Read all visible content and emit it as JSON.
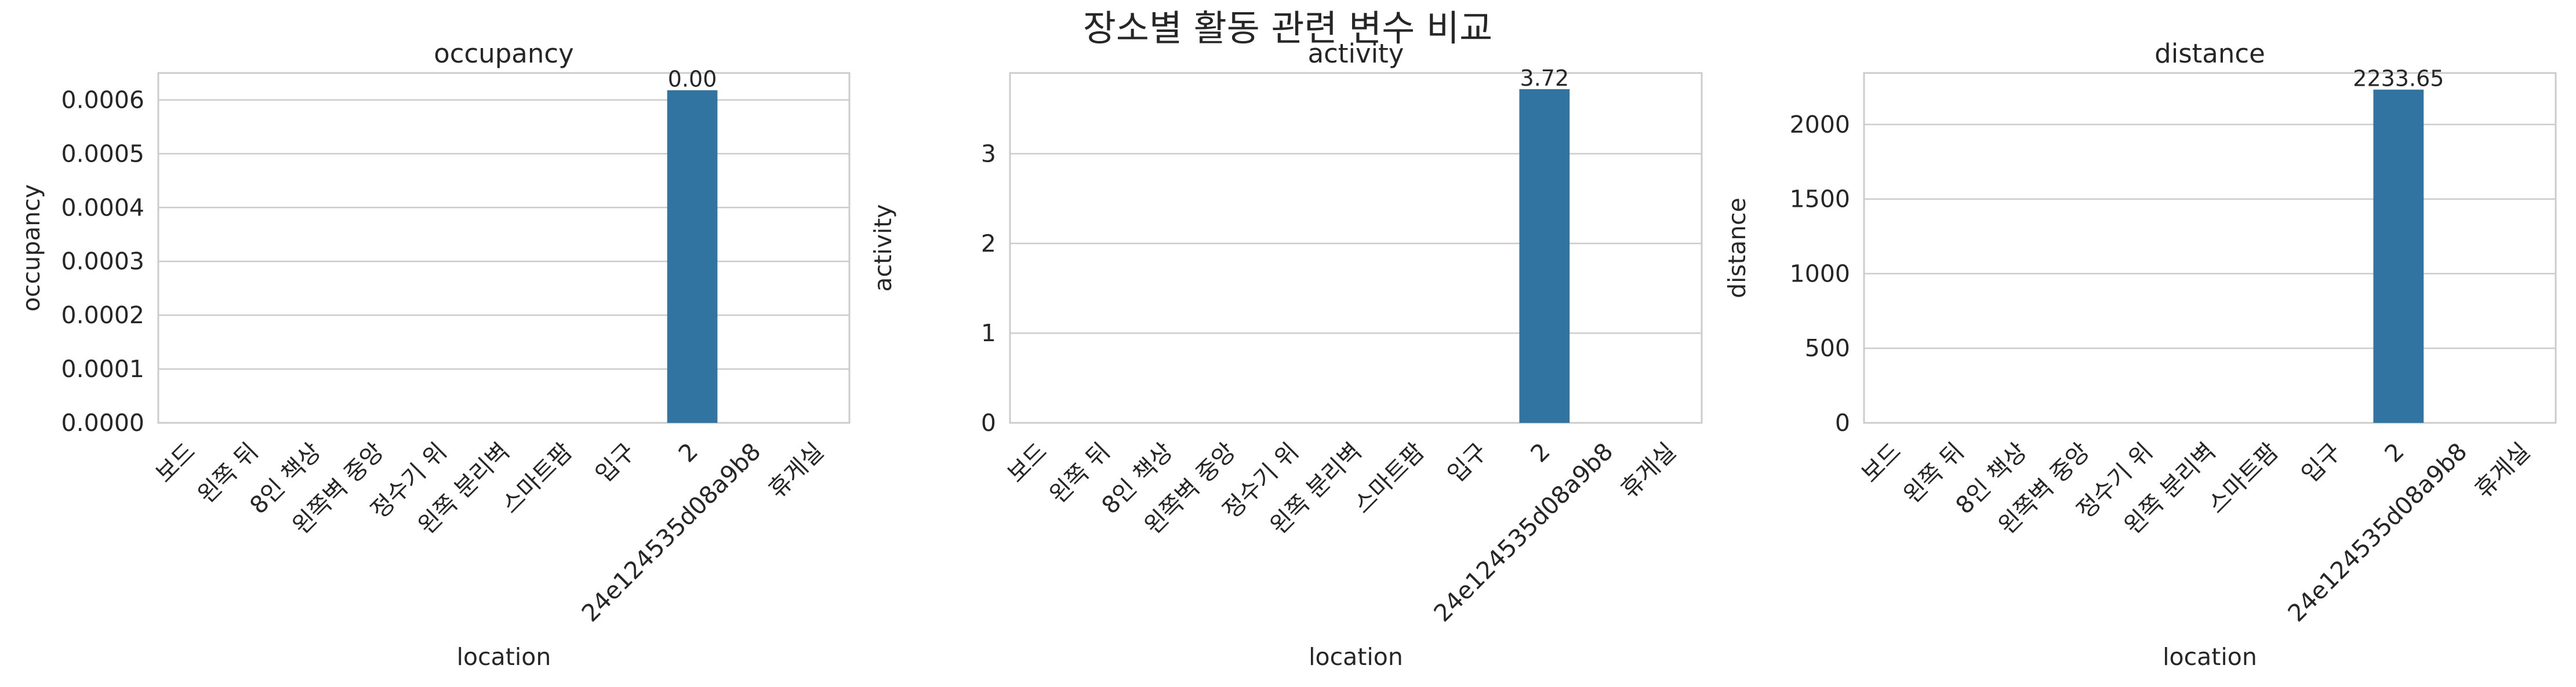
{
  "figure": {
    "suptitle": "장소별 활동 관련 변수 비교"
  },
  "style": {
    "bar_color": "#3274a1",
    "grid_color": "#cccccc",
    "spine_color": "#cccccc",
    "text_color": "#262626",
    "background": "#ffffff"
  },
  "chart_data": [
    {
      "type": "bar",
      "title": "occupancy",
      "xlabel": "location",
      "ylabel": "occupancy",
      "categories": [
        "보드",
        "왼쪽 뒤",
        "8인 책상",
        "왼쪽벽 중앙",
        "정수기 위",
        "왼쪽 분리벽",
        "스마트팜",
        "입구",
        "2",
        "24e124535d08a9b8",
        "휴게실"
      ],
      "values": [
        0,
        0,
        0,
        0,
        0,
        0,
        0,
        0,
        0.000618,
        0,
        0
      ],
      "bar_labels": [
        {
          "index": 8,
          "text": "0.00"
        }
      ],
      "ylim": [
        0,
        0.00065
      ],
      "yticks": [
        0,
        0.0001,
        0.0002,
        0.0003,
        0.0004,
        0.0005,
        0.0006
      ],
      "ytick_labels": [
        "0.0000",
        "0.0001",
        "0.0002",
        "0.0003",
        "0.0004",
        "0.0005",
        "0.0006"
      ],
      "grid": true
    },
    {
      "type": "bar",
      "title": "activity",
      "xlabel": "location",
      "ylabel": "activity",
      "categories": [
        "보드",
        "왼쪽 뒤",
        "8인 책상",
        "왼쪽벽 중앙",
        "정수기 위",
        "왼쪽 분리벽",
        "스마트팜",
        "입구",
        "2",
        "24e124535d08a9b8",
        "휴게실"
      ],
      "values": [
        0,
        0,
        0,
        0,
        0,
        0,
        0,
        0,
        3.72,
        0,
        0
      ],
      "bar_labels": [
        {
          "index": 8,
          "text": "3.72"
        }
      ],
      "ylim": [
        0,
        3.9
      ],
      "yticks": [
        0,
        1,
        2,
        3
      ],
      "ytick_labels": [
        "0",
        "1",
        "2",
        "3"
      ],
      "grid": true
    },
    {
      "type": "bar",
      "title": "distance",
      "xlabel": "location",
      "ylabel": "distance",
      "categories": [
        "보드",
        "왼쪽 뒤",
        "8인 책상",
        "왼쪽벽 중앙",
        "정수기 위",
        "왼쪽 분리벽",
        "스마트팜",
        "입구",
        "2",
        "24e124535d08a9b8",
        "휴게실"
      ],
      "values": [
        0,
        0,
        0,
        0,
        0,
        0,
        0,
        0,
        2233.65,
        0,
        0
      ],
      "bar_labels": [
        {
          "index": 8,
          "text": "2233.65"
        }
      ],
      "ylim": [
        0,
        2345
      ],
      "yticks": [
        0,
        500,
        1000,
        1500,
        2000
      ],
      "ytick_labels": [
        "0",
        "500",
        "1000",
        "1500",
        "2000"
      ],
      "grid": true
    }
  ]
}
